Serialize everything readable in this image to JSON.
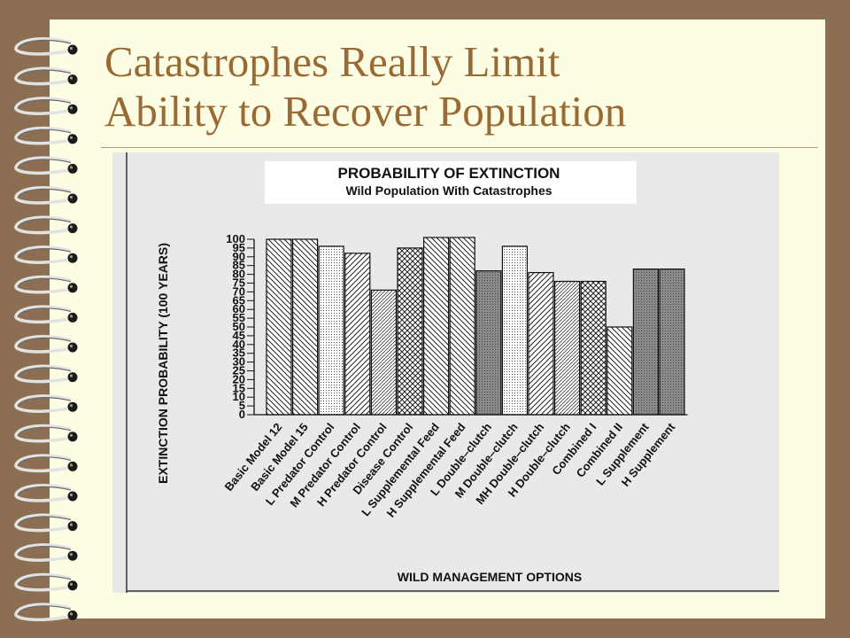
{
  "slide": {
    "title_line1": "Catastrophes Really Limit",
    "title_line2": "Ability to Recover Population"
  },
  "colors": {
    "frame": "#8c6f52",
    "page": "#fdfde4",
    "title": "#9a6a34",
    "figure_bg": "#e9e9e9"
  },
  "chart_data": {
    "type": "bar",
    "title": "PROBABILITY OF EXTINCTION",
    "subtitle": "Wild Population With Catastrophes",
    "xlabel": "WILD MANAGEMENT OPTIONS",
    "ylabel": "EXTINCTION PROBABILITY (100 YEARS)",
    "ylim": [
      0,
      100
    ],
    "yticks": [
      0,
      5,
      10,
      15,
      20,
      25,
      30,
      35,
      40,
      45,
      50,
      55,
      60,
      65,
      70,
      75,
      80,
      85,
      90,
      95,
      100
    ],
    "grid": false,
    "categories": [
      "Basic Model 12",
      "Basic Model 15",
      "L Predator Control",
      "M Predator Control",
      "H Predator Control",
      "Disease Control",
      "L Supplemental Feed",
      "H Supplemental Feed",
      "L Double–clutch",
      "M Double–clutch",
      "MH Double–clutch",
      "H Double–clutch",
      "Combined I",
      "Combined II",
      "L Supplement",
      "H Supplement"
    ],
    "values": [
      100,
      100,
      96,
      92,
      71,
      95,
      101,
      101,
      82,
      96,
      81,
      76,
      76,
      50,
      83,
      83
    ],
    "patterns": [
      "hatch-back",
      "hatch-back",
      "dots",
      "hatch-fwd",
      "hatch-fine",
      "cross",
      "hatch-back",
      "hatch-back",
      "solid-grey",
      "dots",
      "hatch-fwd",
      "hatch-fine",
      "cross",
      "hatch-back",
      "solid-grey",
      "solid-grey"
    ]
  }
}
